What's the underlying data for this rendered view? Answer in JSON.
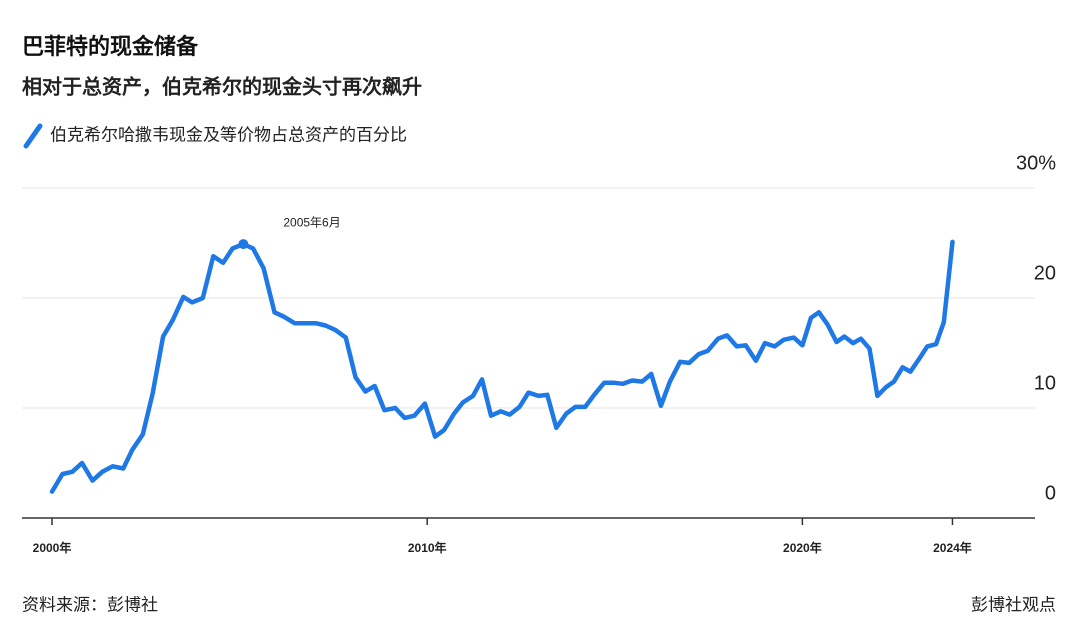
{
  "chart_data": {
    "type": "line",
    "title": "巴菲特的现金储备",
    "subtitle": "相对于总资产，伯克希尔的现金头寸再次飙升",
    "annotation": "2005年6月",
    "source": "资料来源：彭博社",
    "credit": "彭博社观点",
    "x": [
      2000.0,
      2000.28,
      2000.54,
      2000.8,
      2001.08,
      2001.34,
      2001.62,
      2001.9,
      2002.14,
      2002.42,
      2002.68,
      2002.96,
      2003.22,
      2003.5,
      2003.73,
      2004.02,
      2004.3,
      2004.56,
      2004.81,
      2005.1,
      2005.36,
      2005.64,
      2005.93,
      2006.18,
      2006.47,
      2006.75,
      2007.04,
      2007.29,
      2007.55,
      2007.83,
      2008.09,
      2008.35,
      2008.6,
      2008.86,
      2009.15,
      2009.4,
      2009.66,
      2009.94,
      2010.21,
      2010.45,
      2010.72,
      2010.95,
      2011.22,
      2011.46,
      2011.7,
      2011.96,
      2012.2,
      2012.46,
      2012.7,
      2012.97,
      2013.2,
      2013.44,
      2013.71,
      2013.95,
      2014.21,
      2014.45,
      2014.72,
      2014.96,
      2015.22,
      2015.46,
      2015.73,
      2015.97,
      2016.23,
      2016.47,
      2016.74,
      2016.98,
      2017.24,
      2017.48,
      2017.75,
      2017.99,
      2018.25,
      2018.49,
      2018.76,
      2019.0,
      2019.26,
      2019.5,
      2019.77,
      2020.0,
      2020.23,
      2020.44,
      2020.67,
      2020.91,
      2021.12,
      2021.35,
      2021.56,
      2021.79,
      2022.0,
      2022.23,
      2022.44,
      2022.67,
      2022.88,
      2023.12,
      2023.33,
      2023.56,
      2023.77,
      2024.0
    ],
    "series": [
      {
        "name": "伯克希尔哈撒韦现金及等价物占总资产的百分比",
        "color": "#1e78e6",
        "values": [
          2.4,
          4.0,
          4.2,
          5.0,
          3.4,
          4.2,
          4.7,
          4.5,
          6.2,
          7.6,
          11.3,
          16.5,
          18.0,
          20.1,
          19.6,
          20.0,
          23.8,
          23.2,
          24.5,
          24.9,
          24.5,
          22.7,
          18.7,
          18.3,
          17.7,
          17.7,
          17.7,
          17.5,
          17.1,
          16.4,
          12.8,
          11.5,
          12.0,
          9.8,
          10.0,
          9.1,
          9.3,
          10.4,
          7.4,
          8.0,
          9.5,
          10.5,
          11.1,
          12.6,
          9.3,
          9.7,
          9.4,
          10.1,
          11.4,
          11.1,
          11.2,
          8.2,
          9.5,
          10.1,
          10.1,
          11.2,
          12.3,
          12.3,
          12.2,
          12.5,
          12.4,
          13.1,
          10.2,
          12.4,
          14.2,
          14.1,
          14.9,
          15.2,
          16.3,
          16.6,
          15.6,
          15.7,
          14.3,
          15.9,
          15.6,
          16.2,
          16.4,
          15.7,
          18.2,
          18.7,
          17.6,
          16.0,
          16.5,
          15.9,
          16.3,
          15.4,
          11.1,
          11.9,
          12.4,
          13.7,
          13.3,
          14.5,
          15.6,
          15.8,
          17.8,
          25.1
        ]
      }
    ],
    "xlim": [
      1999.2,
      2026.2
    ],
    "xticks": [
      {
        "value": 2000,
        "label": "2000年"
      },
      {
        "value": 2010,
        "label": "2010年"
      },
      {
        "value": 2020,
        "label": "2020年"
      },
      {
        "value": 2024,
        "label": "2024年"
      }
    ],
    "ylim": [
      0,
      30
    ],
    "yticks": [
      0,
      10,
      20,
      {
        "value": 30,
        "label": "30%"
      }
    ],
    "grid": true
  }
}
